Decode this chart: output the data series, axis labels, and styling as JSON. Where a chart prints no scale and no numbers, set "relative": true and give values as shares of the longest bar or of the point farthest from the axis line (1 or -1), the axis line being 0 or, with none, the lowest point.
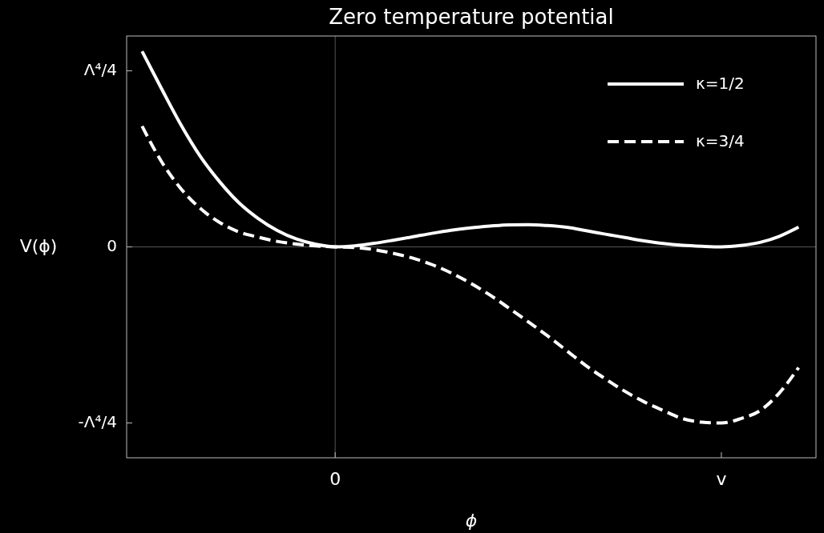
{
  "chart_data": {
    "type": "line",
    "title": "Zero temperature potential",
    "xlabel": "ϕ",
    "ylabel": "V(ϕ)",
    "relative": true,
    "categories": [
      null,
      null,
      null,
      null,
      null,
      null,
      null,
      null,
      null,
      null,
      "0",
      null,
      null,
      null,
      null,
      null,
      null,
      null,
      null,
      null,
      null,
      null,
      null,
      null,
      null,
      null,
      null,
      null,
      null,
      null,
      "v",
      null,
      null,
      null,
      null
    ],
    "annotations": [
      "Λ⁴/4",
      "0",
      "-Λ⁴/4"
    ],
    "ref_lines": [
      {
        "axis": "x",
        "value": "0",
        "color": "#555555"
      },
      {
        "axis": "y",
        "value": 0,
        "color": "#555555"
      }
    ],
    "legend": "top right",
    "series": [
      {
        "name": "κ=1/2",
        "color": "#ffffff",
        "line_style": "solid",
        "values": [
          1.0,
          0.81,
          0.626,
          0.465,
          0.335,
          0.227,
          0.146,
          0.084,
          0.04,
          0.013,
          0,
          0.005,
          0.018,
          0.034,
          0.051,
          0.069,
          0.085,
          0.097,
          0.106,
          0.113,
          0.114,
          0.109,
          0.1,
          0.083,
          0.065,
          0.048,
          0.031,
          0.017,
          0.008,
          0.003,
          0,
          0.007,
          0.023,
          0.054,
          0.101
        ]
      },
      {
        "name": "κ=3/4",
        "color": "#ffffff",
        "line_style": "dashed",
        "values": [
          0.617,
          0.437,
          0.299,
          0.198,
          0.126,
          0.077,
          0.05,
          0.028,
          0.014,
          0.005,
          0,
          -0.003,
          -0.014,
          -0.033,
          -0.057,
          -0.09,
          -0.133,
          -0.185,
          -0.245,
          -0.313,
          -0.383,
          -0.455,
          -0.531,
          -0.608,
          -0.675,
          -0.738,
          -0.792,
          -0.837,
          -0.878,
          -0.896,
          -0.9,
          -0.878,
          -0.837,
          -0.747,
          -0.617
        ]
      }
    ]
  }
}
